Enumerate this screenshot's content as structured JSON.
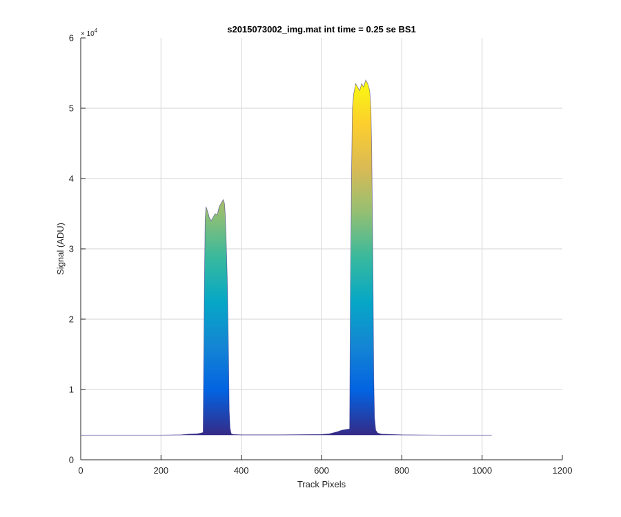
{
  "chart_data": {
    "type": "area",
    "title": "s2015073002_img.mat int time = 0.25 se   BS1",
    "xlabel": "Track Pixels",
    "ylabel": "Signal (ADU)",
    "xlim": [
      0,
      1200
    ],
    "ylim": [
      0,
      60000
    ],
    "x_ticks": [
      0,
      200,
      400,
      600,
      800,
      1000,
      1200
    ],
    "x_tick_labels": [
      "0",
      "200",
      "400",
      "600",
      "800",
      "1000",
      "1200"
    ],
    "y_ticks": [
      0,
      10000,
      20000,
      30000,
      40000,
      50000,
      60000
    ],
    "y_tick_labels": [
      "0",
      "1",
      "2",
      "3",
      "4",
      "5",
      "6"
    ],
    "y_exponent_label": "× 10",
    "y_exponent_power": "4",
    "grid": true,
    "colormap": [
      "#352a87",
      "#0363e1",
      "#1485d4",
      "#06a7c6",
      "#38b99e",
      "#92bf73",
      "#d9ba56",
      "#fcce2e",
      "#f9fb0e"
    ],
    "color_range": [
      3500,
      54000
    ],
    "baseline": 3500,
    "series": [
      {
        "x": [
          1,
          100,
          200,
          250,
          270,
          290,
          300,
          305,
          308,
          310,
          312,
          315,
          318,
          320,
          325,
          330,
          335,
          340,
          345,
          350,
          355,
          358,
          360,
          362,
          365,
          368,
          370,
          372,
          375,
          380,
          400,
          500,
          600,
          620,
          640,
          650,
          660,
          670,
          672,
          675,
          677,
          680,
          685,
          690,
          695,
          700,
          705,
          710,
          715,
          720,
          723,
          725,
          728,
          730,
          732,
          735,
          740,
          750,
          800,
          900,
          1000,
          1024
        ],
        "y": [
          3500,
          3500,
          3500,
          3550,
          3650,
          3700,
          3800,
          3900,
          24000,
          34000,
          36000,
          35500,
          35000,
          34500,
          34000,
          34500,
          35000,
          34800,
          36000,
          36500,
          37000,
          36500,
          35000,
          32000,
          26000,
          16000,
          7000,
          4500,
          3700,
          3600,
          3550,
          3550,
          3600,
          3700,
          4000,
          4200,
          4300,
          4400,
          24000,
          42000,
          50000,
          52000,
          53500,
          53000,
          52500,
          53500,
          53000,
          54000,
          53500,
          52500,
          50000,
          44000,
          28000,
          12000,
          6000,
          4200,
          3800,
          3650,
          3550,
          3500,
          3500,
          3500
        ]
      }
    ]
  }
}
